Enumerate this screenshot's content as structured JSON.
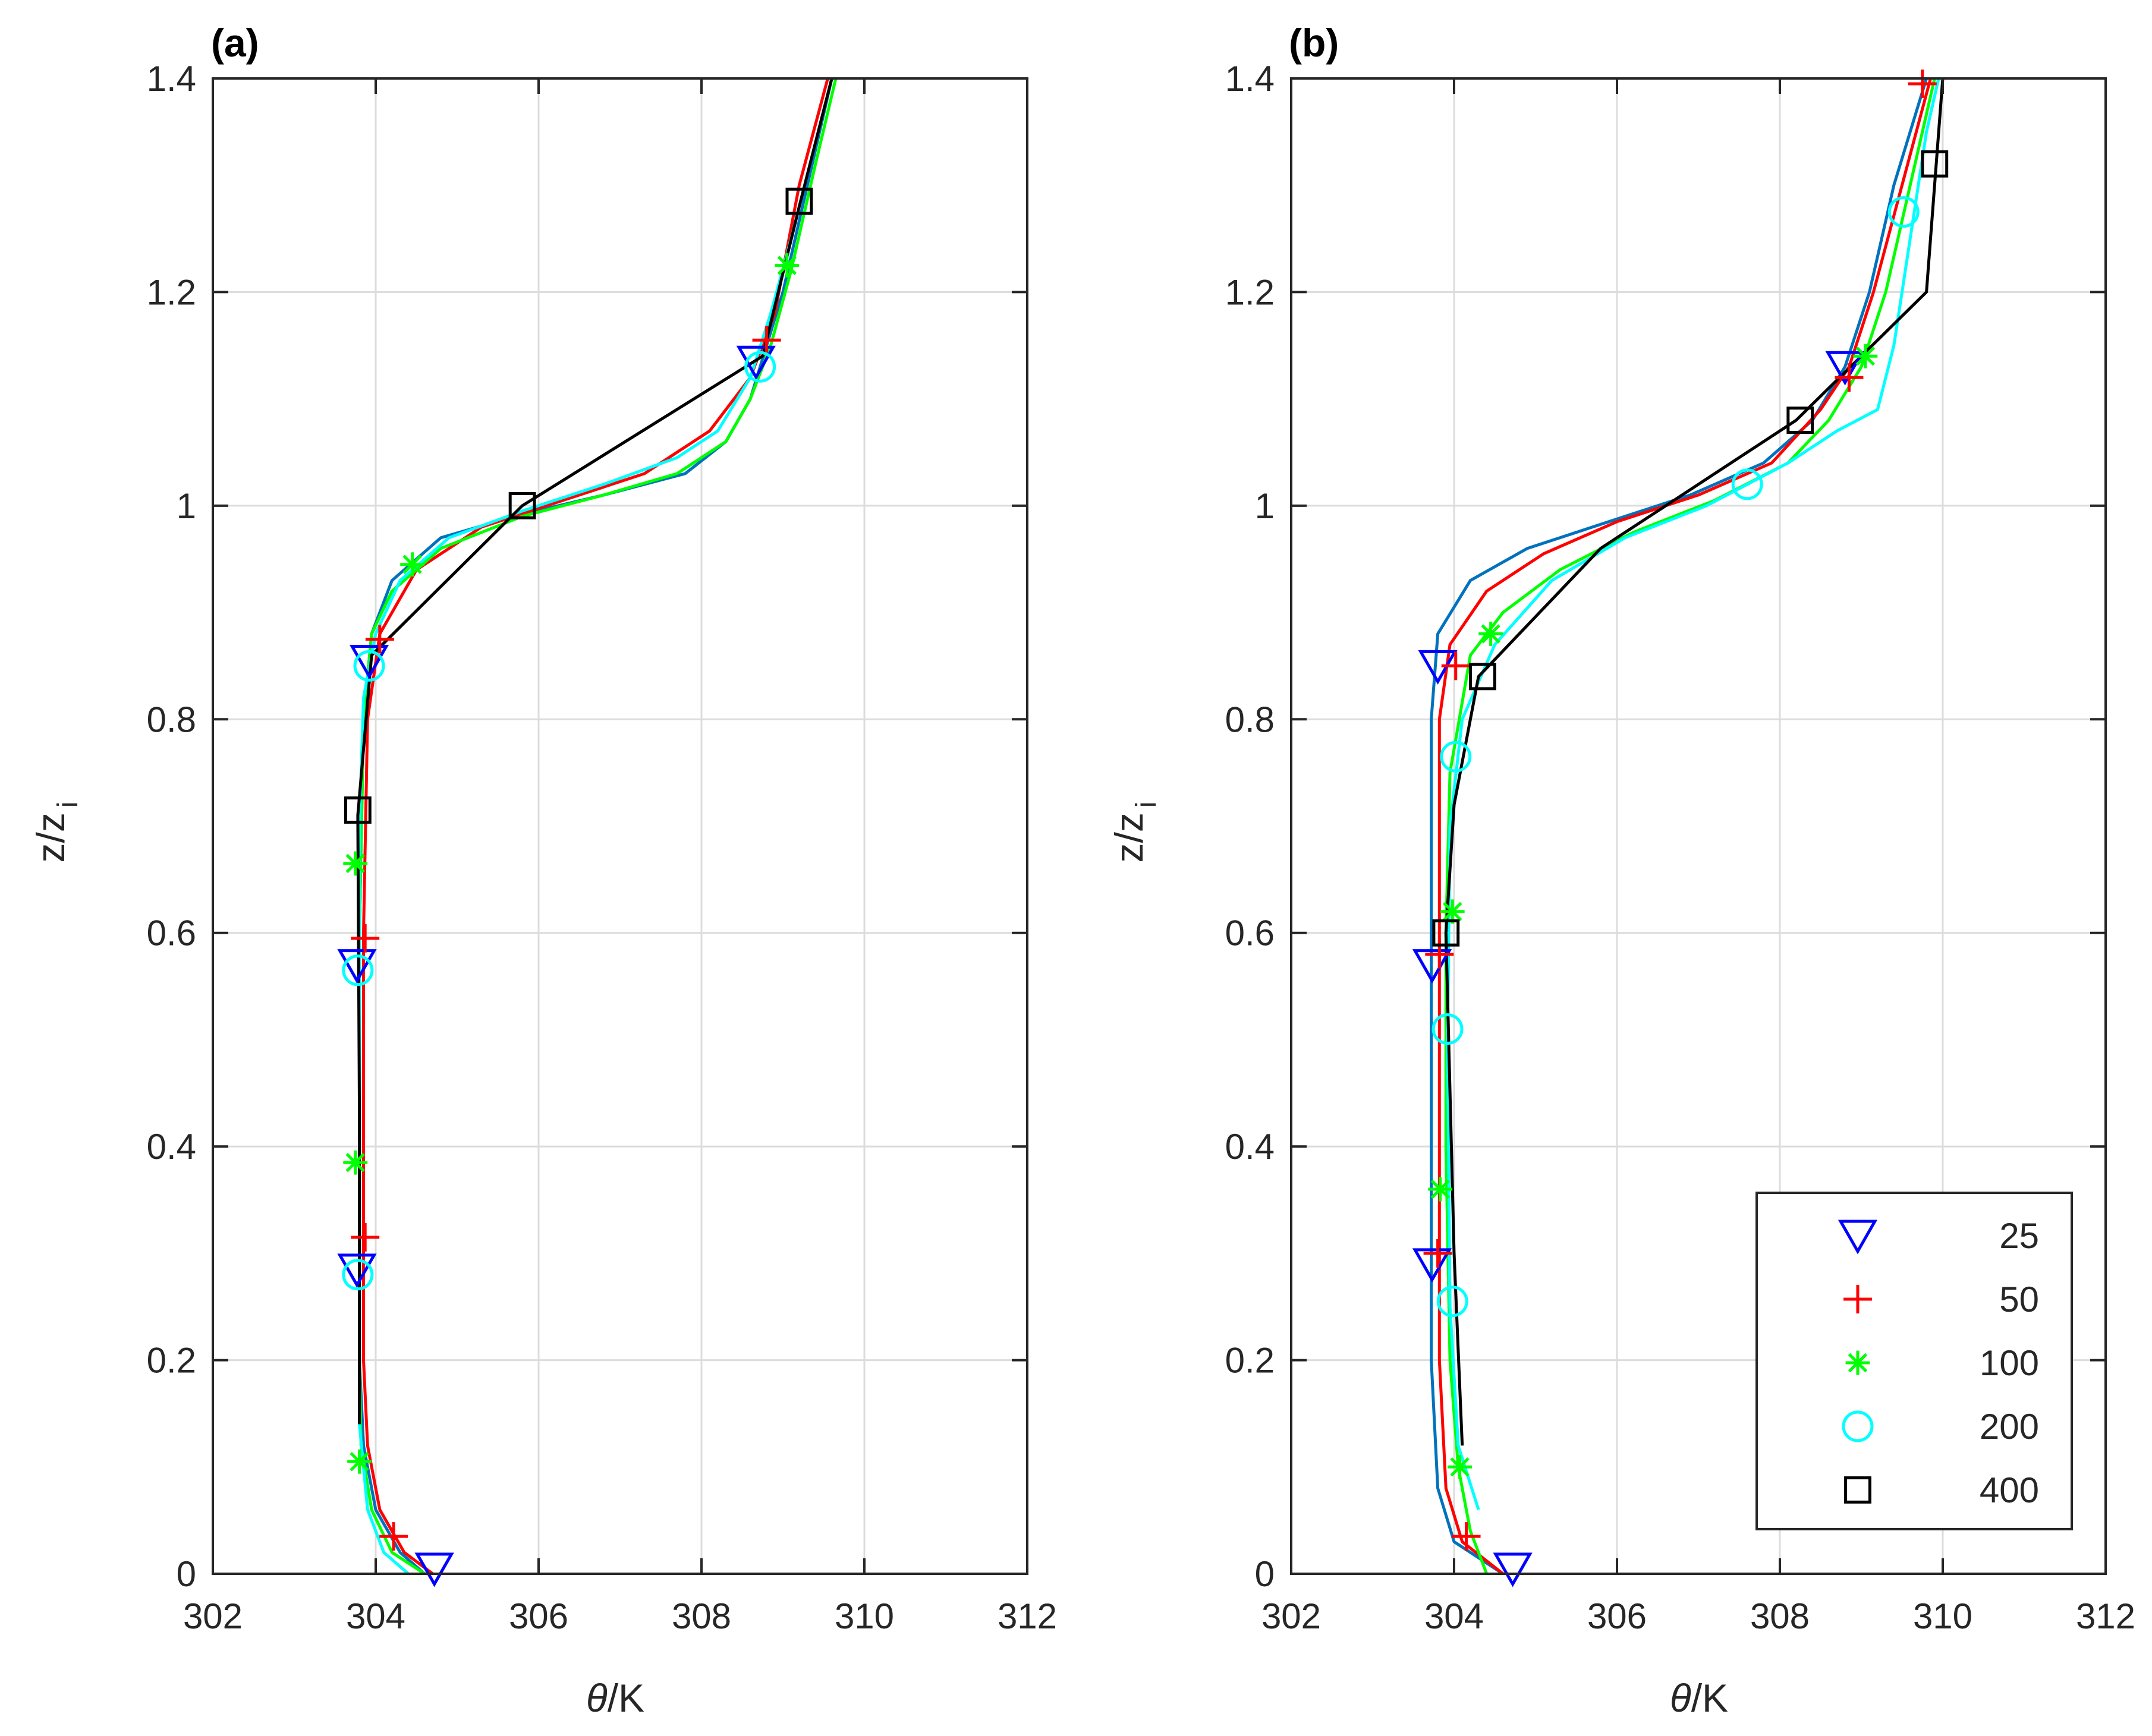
{
  "colors": {
    "s25": "#0000ff",
    "s50": "#ff0000",
    "s100": "#00ff00",
    "s200": "#00ffff",
    "s400": "#000000",
    "line25": "#0072bd",
    "grid": "#dcdcdc",
    "axis": "#262626"
  },
  "chart_data": [
    {
      "type": "line",
      "panel_label": "(a)",
      "xlabel_symbol": "θ",
      "xlabel_unit": "/K",
      "ylabel_main": "z/z",
      "ylabel_sub": "i",
      "xlim": [
        302,
        312
      ],
      "ylim": [
        0,
        1.4
      ],
      "xticks": [
        302,
        304,
        306,
        308,
        310,
        312
      ],
      "yticks": [
        0,
        0.2,
        0.4,
        0.6,
        0.8,
        1,
        1.2,
        1.4
      ],
      "xtick_labels": [
        "302",
        "304",
        "306",
        "308",
        "310",
        "312"
      ],
      "ytick_labels": [
        "0",
        "0.2",
        "0.4",
        "0.6",
        "0.8",
        "1",
        "1.2",
        "1.4"
      ],
      "grid": true,
      "series": [
        {
          "name": "25",
          "color_key": "line25",
          "marker": "triangle-down",
          "marker_color_key": "s25",
          "points": [
            [
              304.6,
              0.0
            ],
            [
              304.3,
              0.02
            ],
            [
              304.0,
              0.06
            ],
            [
              303.85,
              0.12
            ],
            [
              303.8,
              0.2
            ],
            [
              303.8,
              0.4
            ],
            [
              303.8,
              0.6
            ],
            [
              303.85,
              0.8
            ],
            [
              303.95,
              0.88
            ],
            [
              304.2,
              0.93
            ],
            [
              304.8,
              0.97
            ],
            [
              305.8,
              0.992
            ],
            [
              306.8,
              1.01
            ],
            [
              307.8,
              1.03
            ],
            [
              308.3,
              1.06
            ],
            [
              308.6,
              1.1
            ],
            [
              308.8,
              1.15
            ],
            [
              309.0,
              1.2
            ],
            [
              309.3,
              1.3
            ],
            [
              309.6,
              1.4
            ]
          ],
          "markers": [
            [
              304.72,
              0.005
            ],
            [
              303.77,
              0.285
            ],
            [
              303.77,
              0.57
            ],
            [
              303.92,
              0.855
            ],
            [
              308.67,
              1.135
            ]
          ]
        },
        {
          "name": "50",
          "color_key": "s50",
          "marker": "plus",
          "marker_color_key": "s50",
          "points": [
            [
              304.7,
              0.0
            ],
            [
              304.35,
              0.02
            ],
            [
              304.05,
              0.06
            ],
            [
              303.9,
              0.12
            ],
            [
              303.85,
              0.2
            ],
            [
              303.85,
              0.4
            ],
            [
              303.85,
              0.6
            ],
            [
              303.9,
              0.8
            ],
            [
              304.05,
              0.88
            ],
            [
              304.5,
              0.94
            ],
            [
              305.3,
              0.98
            ],
            [
              306.3,
              1.005
            ],
            [
              307.3,
              1.03
            ],
            [
              308.1,
              1.07
            ],
            [
              308.6,
              1.12
            ],
            [
              308.9,
              1.18
            ],
            [
              309.2,
              1.3
            ],
            [
              309.55,
              1.4
            ]
          ],
          "markers": [
            [
              304.22,
              0.035
            ],
            [
              303.87,
              0.315
            ],
            [
              303.87,
              0.595
            ],
            [
              304.05,
              0.875
            ],
            [
              308.8,
              1.155
            ]
          ]
        },
        {
          "name": "100",
          "color_key": "s100",
          "marker": "asterisk",
          "marker_color_key": "s100",
          "points": [
            [
              304.6,
              0.0
            ],
            [
              304.2,
              0.02
            ],
            [
              303.95,
              0.06
            ],
            [
              303.82,
              0.12
            ],
            [
              303.8,
              0.2
            ],
            [
              303.8,
              0.4
            ],
            [
              303.8,
              0.6
            ],
            [
              303.85,
              0.8
            ],
            [
              303.95,
              0.88
            ],
            [
              304.2,
              0.92
            ],
            [
              304.8,
              0.96
            ],
            [
              305.8,
              0.99
            ],
            [
              306.8,
              1.01
            ],
            [
              307.7,
              1.03
            ],
            [
              308.3,
              1.06
            ],
            [
              308.6,
              1.1
            ],
            [
              308.85,
              1.15
            ],
            [
              309.1,
              1.22
            ],
            [
              309.4,
              1.32
            ],
            [
              309.65,
              1.4
            ]
          ],
          "markers": [
            [
              303.8,
              0.105
            ],
            [
              303.75,
              0.385
            ],
            [
              303.75,
              0.665
            ],
            [
              304.45,
              0.945
            ],
            [
              309.05,
              1.225
            ]
          ]
        },
        {
          "name": "200",
          "color_key": "s200",
          "marker": "circle",
          "marker_color_key": "s200",
          "points": [
            [
              304.4,
              0.0
            ],
            [
              304.1,
              0.02
            ],
            [
              303.9,
              0.06
            ],
            [
              303.8,
              0.14
            ],
            [
              303.8,
              0.3
            ],
            [
              303.8,
              0.5
            ],
            [
              303.8,
              0.7
            ],
            [
              303.85,
              0.82
            ],
            [
              304.0,
              0.88
            ],
            [
              304.3,
              0.93
            ],
            [
              304.9,
              0.97
            ],
            [
              305.8,
              0.995
            ],
            [
              306.8,
              1.02
            ],
            [
              307.7,
              1.045
            ],
            [
              308.2,
              1.07
            ],
            [
              308.6,
              1.12
            ],
            [
              308.85,
              1.18
            ],
            [
              309.1,
              1.25
            ],
            [
              309.5,
              1.37
            ],
            [
              309.6,
              1.4
            ]
          ],
          "markers": [
            [
              303.78,
              0.28
            ],
            [
              303.78,
              0.565
            ],
            [
              303.92,
              0.85
            ],
            [
              308.72,
              1.13
            ]
          ]
        },
        {
          "name": "400",
          "color_key": "s400",
          "marker": "square",
          "marker_color_key": "s400",
          "points": [
            [
              303.8,
              0.14
            ],
            [
              303.8,
              0.43
            ],
            [
              303.78,
              0.71
            ],
            [
              303.95,
              0.86
            ],
            [
              305.8,
              1.0
            ],
            [
              308.75,
              1.14
            ],
            [
              309.2,
              1.28
            ],
            [
              309.6,
              1.4
            ]
          ],
          "markers": [
            [
              305.8,
              1.0
            ],
            [
              303.78,
              0.715
            ],
            [
              309.2,
              1.285
            ]
          ]
        }
      ]
    },
    {
      "type": "line",
      "panel_label": "(b)",
      "xlabel_symbol": "θ",
      "xlabel_unit": "/K",
      "ylabel_main": "z/z",
      "ylabel_sub": "i",
      "xlim": [
        302,
        312
      ],
      "ylim": [
        0,
        1.4
      ],
      "xticks": [
        302,
        304,
        306,
        308,
        310,
        312
      ],
      "yticks": [
        0,
        0.2,
        0.4,
        0.6,
        0.8,
        1,
        1.2,
        1.4
      ],
      "xtick_labels": [
        "302",
        "304",
        "306",
        "308",
        "310",
        "312"
      ],
      "ytick_labels": [
        "0",
        "0.2",
        "0.4",
        "0.6",
        "0.8",
        "1",
        "1.2",
        "1.4"
      ],
      "grid": true,
      "legend_position": "bottom-right",
      "series": [
        {
          "name": "25",
          "color_key": "line25",
          "marker": "triangle-down",
          "marker_color_key": "s25",
          "points": [
            [
              304.6,
              0.0
            ],
            [
              304.0,
              0.03
            ],
            [
              303.8,
              0.08
            ],
            [
              303.72,
              0.2
            ],
            [
              303.72,
              0.5
            ],
            [
              303.72,
              0.8
            ],
            [
              303.8,
              0.88
            ],
            [
              304.2,
              0.93
            ],
            [
              304.9,
              0.96
            ],
            [
              305.9,
              0.985
            ],
            [
              306.9,
              1.01
            ],
            [
              307.8,
              1.04
            ],
            [
              308.4,
              1.08
            ],
            [
              308.8,
              1.13
            ],
            [
              309.1,
              1.2
            ],
            [
              309.4,
              1.3
            ],
            [
              309.8,
              1.4
            ]
          ],
          "markers": [
            [
              304.72,
              0.005
            ],
            [
              303.73,
              0.29
            ],
            [
              303.73,
              0.57
            ],
            [
              303.8,
              0.85
            ],
            [
              308.8,
              1.13
            ]
          ]
        },
        {
          "name": "50",
          "color_key": "s50",
          "marker": "plus",
          "marker_color_key": "s50",
          "points": [
            [
              304.6,
              0.0
            ],
            [
              304.1,
              0.03
            ],
            [
              303.9,
              0.08
            ],
            [
              303.82,
              0.2
            ],
            [
              303.82,
              0.5
            ],
            [
              303.82,
              0.8
            ],
            [
              303.95,
              0.87
            ],
            [
              304.4,
              0.92
            ],
            [
              305.1,
              0.955
            ],
            [
              306.0,
              0.985
            ],
            [
              307.0,
              1.01
            ],
            [
              307.9,
              1.04
            ],
            [
              308.5,
              1.09
            ],
            [
              308.85,
              1.13
            ],
            [
              309.15,
              1.2
            ],
            [
              309.5,
              1.3
            ],
            [
              309.85,
              1.4
            ]
          ],
          "markers": [
            [
              304.15,
              0.035
            ],
            [
              303.8,
              0.3
            ],
            [
              303.82,
              0.58
            ],
            [
              304.02,
              0.85
            ],
            [
              308.85,
              1.12
            ],
            [
              309.75,
              1.395
            ]
          ]
        },
        {
          "name": "100",
          "color_key": "s100",
          "marker": "asterisk",
          "marker_color_key": "s100",
          "points": [
            [
              304.4,
              0.0
            ],
            [
              304.2,
              0.04
            ],
            [
              304.05,
              0.1
            ],
            [
              303.95,
              0.2
            ],
            [
              303.9,
              0.4
            ],
            [
              303.9,
              0.6
            ],
            [
              303.95,
              0.75
            ],
            [
              304.2,
              0.86
            ],
            [
              304.6,
              0.9
            ],
            [
              305.3,
              0.94
            ],
            [
              306.2,
              0.975
            ],
            [
              307.2,
              1.005
            ],
            [
              308.1,
              1.04
            ],
            [
              308.6,
              1.08
            ],
            [
              309.0,
              1.13
            ],
            [
              309.3,
              1.2
            ],
            [
              309.6,
              1.3
            ],
            [
              309.9,
              1.4
            ]
          ],
          "markers": [
            [
              304.07,
              0.1
            ],
            [
              303.83,
              0.36
            ],
            [
              303.98,
              0.62
            ],
            [
              304.45,
              0.88
            ],
            [
              309.05,
              1.14
            ]
          ]
        },
        {
          "name": "200",
          "color_key": "s200",
          "marker": "circle",
          "marker_color_key": "s200",
          "points": [
            [
              304.3,
              0.06
            ],
            [
              304.05,
              0.12
            ],
            [
              303.95,
              0.25
            ],
            [
              303.92,
              0.5
            ],
            [
              303.95,
              0.7
            ],
            [
              304.1,
              0.8
            ],
            [
              304.5,
              0.87
            ],
            [
              305.2,
              0.93
            ],
            [
              306.1,
              0.97
            ],
            [
              307.1,
              1.0
            ],
            [
              308.1,
              1.04
            ],
            [
              308.7,
              1.07
            ],
            [
              309.2,
              1.09
            ],
            [
              309.4,
              1.15
            ],
            [
              309.6,
              1.25
            ],
            [
              309.8,
              1.35
            ],
            [
              309.95,
              1.4
            ]
          ],
          "markers": [
            [
              303.98,
              0.255
            ],
            [
              303.92,
              0.51
            ],
            [
              304.02,
              0.765
            ],
            [
              307.6,
              1.02
            ],
            [
              309.52,
              1.275
            ]
          ]
        },
        {
          "name": "400",
          "color_key": "s400",
          "marker": "square",
          "marker_color_key": "s400",
          "points": [
            [
              304.1,
              0.12
            ],
            [
              304.0,
              0.3
            ],
            [
              303.9,
              0.6
            ],
            [
              304.0,
              0.72
            ],
            [
              304.3,
              0.84
            ],
            [
              305.8,
              0.96
            ],
            [
              308.2,
              1.08
            ],
            [
              309.8,
              1.2
            ],
            [
              310.0,
              1.4
            ]
          ],
          "markers": [
            [
              303.9,
              0.6
            ],
            [
              304.35,
              0.84
            ],
            [
              308.25,
              1.08
            ],
            [
              309.9,
              1.32
            ]
          ]
        }
      ]
    }
  ],
  "legend": {
    "entries": [
      {
        "label": "25",
        "marker": "triangle-down",
        "color_key": "s25"
      },
      {
        "label": "50",
        "marker": "plus",
        "color_key": "s50"
      },
      {
        "label": "100",
        "marker": "asterisk",
        "color_key": "s100"
      },
      {
        "label": "200",
        "marker": "circle",
        "color_key": "s200"
      },
      {
        "label": "400",
        "marker": "square",
        "color_key": "s400"
      }
    ]
  }
}
